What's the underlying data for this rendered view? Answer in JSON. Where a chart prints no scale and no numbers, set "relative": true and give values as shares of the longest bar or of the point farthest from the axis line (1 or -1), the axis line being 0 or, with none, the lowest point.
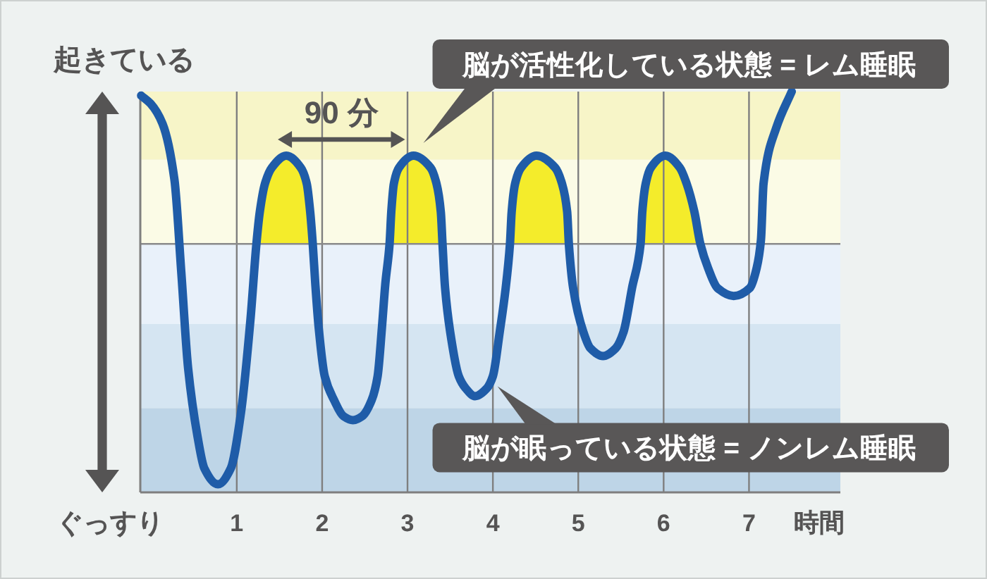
{
  "chart_data": {
    "type": "line",
    "relative": true,
    "x": [
      -0.12,
      -0.01,
      0.13,
      0.27,
      0.35,
      0.43,
      0.54,
      0.62,
      0.78,
      0.93,
      1.05,
      1.16,
      1.23,
      1.27,
      1.33,
      1.41,
      1.58,
      1.75,
      1.82,
      1.86,
      1.89,
      1.92,
      1.96,
      2.03,
      2.14,
      2.25,
      2.36,
      2.47,
      2.58,
      2.65,
      2.7,
      2.74,
      2.79,
      2.81,
      2.84,
      2.9,
      3.07,
      3.27,
      3.34,
      3.39,
      3.41,
      3.44,
      3.5,
      3.6,
      3.68,
      3.79,
      3.93,
      4.0,
      4.08,
      4.15,
      4.2,
      4.22,
      4.26,
      4.33,
      4.51,
      4.73,
      4.81,
      4.87,
      4.89,
      4.94,
      5.06,
      5.14,
      5.29,
      5.44,
      5.53,
      5.63,
      5.73,
      5.75,
      5.79,
      5.85,
      6.02,
      6.19,
      6.27,
      6.36,
      6.43,
      6.52,
      6.63,
      6.82,
      7.01,
      7.09,
      7.14,
      7.17,
      7.32,
      7.5
    ],
    "xlim": [
      -0.13,
      8.07
    ],
    "xticks": [
      1,
      2,
      3,
      4,
      5,
      6,
      7
    ],
    "xlabel": "時間",
    "grid": "x",
    "series": [
      {
        "color": "#1f5ca8",
        "values": [
          0.99,
          0.97,
          0.92,
          0.78,
          0.55,
          0.31,
          0.14,
          0.06,
          0.02,
          0.06,
          0.2,
          0.43,
          0.62,
          0.7,
          0.77,
          0.81,
          0.84,
          0.81,
          0.77,
          0.7,
          0.62,
          0.52,
          0.41,
          0.29,
          0.23,
          0.19,
          0.18,
          0.19,
          0.23,
          0.29,
          0.41,
          0.52,
          0.62,
          0.7,
          0.77,
          0.81,
          0.84,
          0.81,
          0.77,
          0.7,
          0.62,
          0.51,
          0.4,
          0.29,
          0.26,
          0.24,
          0.26,
          0.29,
          0.4,
          0.51,
          0.62,
          0.7,
          0.77,
          0.81,
          0.84,
          0.81,
          0.77,
          0.7,
          0.62,
          0.51,
          0.4,
          0.36,
          0.34,
          0.36,
          0.4,
          0.51,
          0.62,
          0.7,
          0.77,
          0.81,
          0.84,
          0.81,
          0.77,
          0.7,
          0.62,
          0.56,
          0.51,
          0.49,
          0.51,
          0.56,
          0.63,
          0.77,
          0.91,
          1.0
        ],
        "lower": [
          null,
          null,
          null,
          null,
          null,
          null,
          null,
          null,
          null,
          null,
          null,
          null,
          0.62,
          0.62,
          0.62,
          0.62,
          0.62,
          0.62,
          0.62,
          0.62,
          0.62,
          null,
          null,
          null,
          null,
          null,
          null,
          null,
          null,
          null,
          null,
          null,
          0.62,
          0.62,
          0.62,
          0.62,
          0.62,
          0.62,
          0.62,
          0.62,
          0.62,
          null,
          null,
          null,
          null,
          null,
          null,
          null,
          null,
          null,
          0.62,
          0.62,
          0.62,
          0.62,
          0.62,
          0.62,
          0.62,
          0.62,
          0.62,
          null,
          null,
          null,
          null,
          null,
          null,
          null,
          0.62,
          0.62,
          0.62,
          0.62,
          0.62,
          0.62,
          0.62,
          0.62,
          0.62,
          null,
          null,
          null,
          null,
          null,
          null,
          null,
          null,
          null
        ],
        "upper": [
          null,
          null,
          null,
          null,
          null,
          null,
          null,
          null,
          null,
          null,
          null,
          null,
          0.62,
          0.7,
          0.77,
          0.81,
          0.84,
          0.81,
          0.77,
          0.7,
          0.62,
          null,
          null,
          null,
          null,
          null,
          null,
          null,
          null,
          null,
          null,
          null,
          0.62,
          0.7,
          0.77,
          0.81,
          0.84,
          0.81,
          0.77,
          0.7,
          0.62,
          null,
          null,
          null,
          null,
          null,
          null,
          null,
          null,
          null,
          0.62,
          0.7,
          0.77,
          0.81,
          0.84,
          0.81,
          0.77,
          0.7,
          0.62,
          null,
          null,
          null,
          null,
          null,
          null,
          null,
          0.62,
          0.7,
          0.77,
          0.81,
          0.84,
          0.81,
          0.77,
          0.7,
          0.62,
          null,
          null,
          null,
          null,
          null,
          null,
          null,
          null,
          null
        ]
      }
    ],
    "bands": [
      {
        "axis": "y",
        "from": 0.83,
        "to": 1,
        "color": "#f7f5c8"
      },
      {
        "axis": "y",
        "from": 0.62,
        "to": 0.83,
        "color": "#fbfbe6"
      },
      {
        "axis": "y",
        "from": 0.42,
        "to": 0.62,
        "color": "#e9f1fa"
      },
      {
        "axis": "y",
        "from": 0.21,
        "to": 0.42,
        "color": "#d5e5f2"
      },
      {
        "axis": "y",
        "from": 0,
        "to": 0.21,
        "color": "#bed5e7"
      }
    ],
    "ref_lines": [
      {
        "axis": "y",
        "value": 0.62,
        "color": "#8a8a8a"
      }
    ],
    "annotations": [
      "起きている",
      "ぐっすり",
      "90 分",
      "脳が活性化している状態 = レム睡眠",
      "脳が眠っている状態 = ノンレム睡眠"
    ]
  }
}
